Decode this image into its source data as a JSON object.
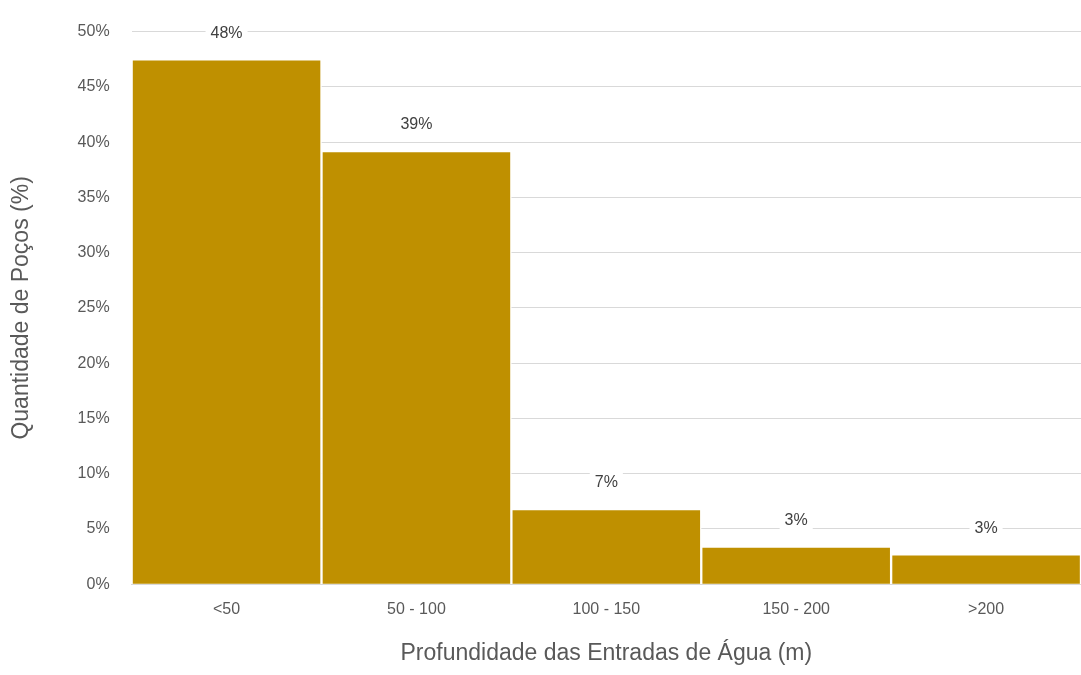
{
  "chart_data": {
    "type": "bar",
    "xlabel": "Profundidade das Entradas de Água (m)",
    "ylabel": "Quantidade de Poços (%)",
    "categories": [
      "<50",
      "50 - 100",
      "100 - 150",
      "150 - 200",
      ">200"
    ],
    "values": [
      47.5,
      39.2,
      6.8,
      3.4,
      2.7
    ],
    "value_labels": [
      "48%",
      "39%",
      "7%",
      "3%",
      "3%"
    ],
    "color": "#bf9000",
    "ylim": [
      0,
      50
    ],
    "yticks": [
      {
        "value": 0,
        "label": "0%"
      },
      {
        "value": 5,
        "label": "5%"
      },
      {
        "value": 10,
        "label": "10%"
      },
      {
        "value": 15,
        "label": "15%"
      },
      {
        "value": 20,
        "label": "20%"
      },
      {
        "value": 25,
        "label": "25%"
      },
      {
        "value": 30,
        "label": "30%"
      },
      {
        "value": 35,
        "label": "35%"
      },
      {
        "value": 40,
        "label": "40%"
      },
      {
        "value": 45,
        "label": "45%"
      },
      {
        "value": 50,
        "label": "50%"
      }
    ],
    "grid": "y",
    "legend": false
  }
}
